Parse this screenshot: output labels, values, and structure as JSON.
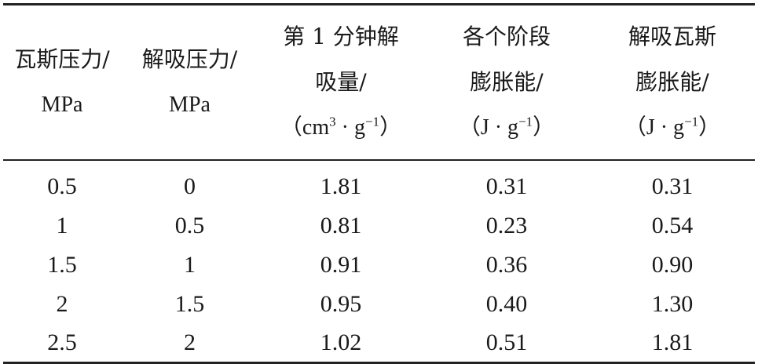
{
  "table": {
    "headers": [
      {
        "lines": [
          "瓦斯压力/",
          "MPa"
        ]
      },
      {
        "lines": [
          "解吸压力/",
          "MPa"
        ]
      },
      {
        "lines": [
          "第 1 分钟解",
          "吸量/"
        ],
        "unit_open": "（cm",
        "unit_sup1": "3",
        "unit_mid": " · g",
        "unit_sup2": "−1",
        "unit_close": "）"
      },
      {
        "lines": [
          "各个阶段",
          "膨胀能/"
        ],
        "unit_open": "（J · g",
        "unit_sup": "−1",
        "unit_close": "）"
      },
      {
        "lines": [
          "解吸瓦斯",
          "膨胀能/"
        ],
        "unit_open": "（J · g",
        "unit_sup": "−1",
        "unit_close": "）"
      }
    ],
    "rows": [
      [
        "0.5",
        "0",
        "1.81",
        "0.31",
        "0.31"
      ],
      [
        "1",
        "0.5",
        "0.81",
        "0.23",
        "0.54"
      ],
      [
        "1.5",
        "1",
        "0.91",
        "0.36",
        "0.90"
      ],
      [
        "2",
        "1.5",
        "0.95",
        "0.40",
        "1.30"
      ],
      [
        "2.5",
        "2",
        "1.02",
        "0.51",
        "1.81"
      ]
    ]
  }
}
